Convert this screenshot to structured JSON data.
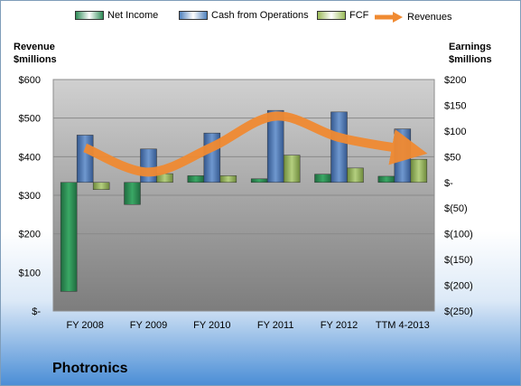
{
  "chart_data": {
    "type": "bar",
    "categories": [
      "FY 2008",
      "FY 2009",
      "FY 2010",
      "FY 2011",
      "FY 2012",
      "TTM 4-2013"
    ],
    "series": [
      {
        "name": "Net Income",
        "axis": "right",
        "color": "#2e8b57",
        "values": [
          -212,
          -43,
          13,
          7,
          16,
          12
        ]
      },
      {
        "name": "Cash from Operations",
        "axis": "right",
        "color": "#4f81bd",
        "values": [
          92,
          65,
          96,
          140,
          137,
          104
        ]
      },
      {
        "name": "FCF",
        "axis": "right",
        "color": "#9bbb59",
        "values": [
          -14,
          17,
          13,
          53,
          28,
          45
        ]
      },
      {
        "name": "Revenues",
        "axis": "left",
        "type": "line",
        "color": "#f08a32",
        "values": [
          423,
          360,
          425,
          505,
          450,
          420
        ]
      }
    ],
    "left_axis": {
      "title": "Revenue\n$millions",
      "ylim": [
        0,
        600
      ],
      "ticks": [
        0,
        100,
        200,
        300,
        400,
        500,
        600
      ],
      "tick_labels": [
        "$-",
        "$100",
        "$200",
        "$300",
        "$400",
        "$500",
        "$600"
      ]
    },
    "right_axis": {
      "title": "Earnings\n$millions",
      "ylim": [
        -250,
        200
      ],
      "ticks": [
        -250,
        -200,
        -150,
        -100,
        -50,
        0,
        50,
        100,
        150,
        200
      ],
      "tick_labels": [
        "$(250)",
        "$(200)",
        "$(150)",
        "$(100)",
        "$(50)",
        "$-",
        "$50",
        "$100",
        "$150",
        "$200"
      ]
    },
    "legend_position": "top",
    "grid": true
  },
  "company": "Photronics"
}
